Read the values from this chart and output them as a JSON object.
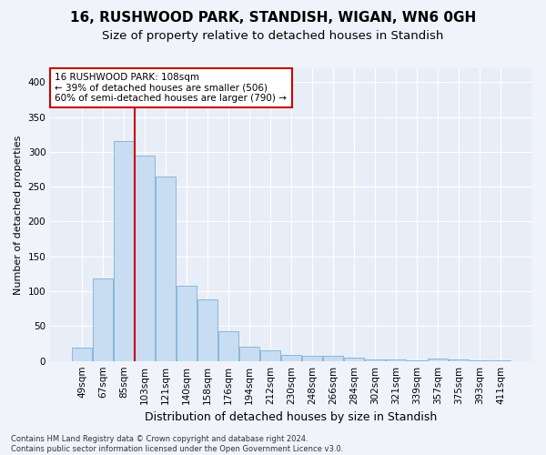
{
  "title1": "16, RUSHWOOD PARK, STANDISH, WIGAN, WN6 0GH",
  "title2": "Size of property relative to detached houses in Standish",
  "xlabel": "Distribution of detached houses by size in Standish",
  "ylabel": "Number of detached properties",
  "footer": "Contains HM Land Registry data © Crown copyright and database right 2024.\nContains public sector information licensed under the Open Government Licence v3.0.",
  "categories": [
    "49sqm",
    "67sqm",
    "85sqm",
    "103sqm",
    "121sqm",
    "140sqm",
    "158sqm",
    "176sqm",
    "194sqm",
    "212sqm",
    "230sqm",
    "248sqm",
    "266sqm",
    "284sqm",
    "302sqm",
    "321sqm",
    "339sqm",
    "357sqm",
    "375sqm",
    "393sqm",
    "411sqm"
  ],
  "values": [
    19,
    118,
    315,
    295,
    265,
    108,
    88,
    43,
    20,
    15,
    9,
    8,
    8,
    5,
    2,
    2,
    1,
    3,
    2,
    1,
    1
  ],
  "bar_color": "#c8ddf2",
  "bar_edge_color": "#7bafd4",
  "vline_color": "#cc0000",
  "annotation_line1": "16 RUSHWOOD PARK: 108sqm",
  "annotation_line2": "← 39% of detached houses are smaller (506)",
  "annotation_line3": "60% of semi-detached houses are larger (790) →",
  "annotation_box_color": "#ffffff",
  "annotation_box_edgecolor": "#cc0000",
  "ylim": [
    0,
    420
  ],
  "yticks": [
    0,
    50,
    100,
    150,
    200,
    250,
    300,
    350,
    400
  ],
  "fig_bg_color": "#f0f4fa",
  "plot_bg_color": "#e8eef7",
  "grid_color": "#ffffff",
  "title1_fontsize": 11,
  "title2_fontsize": 9.5,
  "xlabel_fontsize": 9,
  "ylabel_fontsize": 8,
  "tick_fontsize": 7.5,
  "annotation_fontsize": 7.5,
  "footer_fontsize": 6
}
